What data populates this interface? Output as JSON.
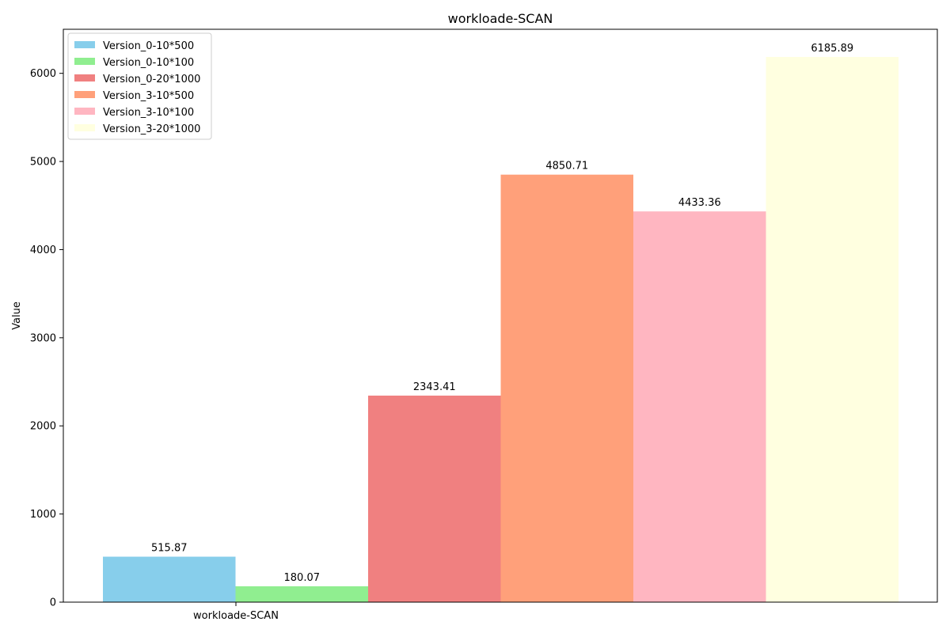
{
  "chart_data": {
    "type": "bar",
    "title": "workloade-SCAN",
    "xlabel": "",
    "ylabel": "Value",
    "categories": [
      "workloade-SCAN"
    ],
    "ylim": [
      0,
      6500
    ],
    "yticks": [
      0,
      1000,
      2000,
      3000,
      4000,
      5000,
      6000
    ],
    "grid": false,
    "legend_position": "top-left",
    "series": [
      {
        "name": "Version_0-10*500",
        "color": "#87CEEB",
        "values": [
          515.87
        ],
        "label": "515.87"
      },
      {
        "name": "Version_0-10*100",
        "color": "#90EE90",
        "values": [
          180.07
        ],
        "label": "180.07"
      },
      {
        "name": "Version_0-20*1000",
        "color": "#F08080",
        "values": [
          2343.41
        ],
        "label": "2343.41"
      },
      {
        "name": "Version_3-10*500",
        "color": "#FFA07A",
        "values": [
          4850.71
        ],
        "label": "4850.71"
      },
      {
        "name": "Version_3-10*100",
        "color": "#FFB6C1",
        "values": [
          4433.36
        ],
        "label": "4433.36"
      },
      {
        "name": "Version_3-20*1000",
        "color": "#FFFFE0",
        "values": [
          6185.89
        ],
        "label": "6185.89"
      }
    ]
  }
}
